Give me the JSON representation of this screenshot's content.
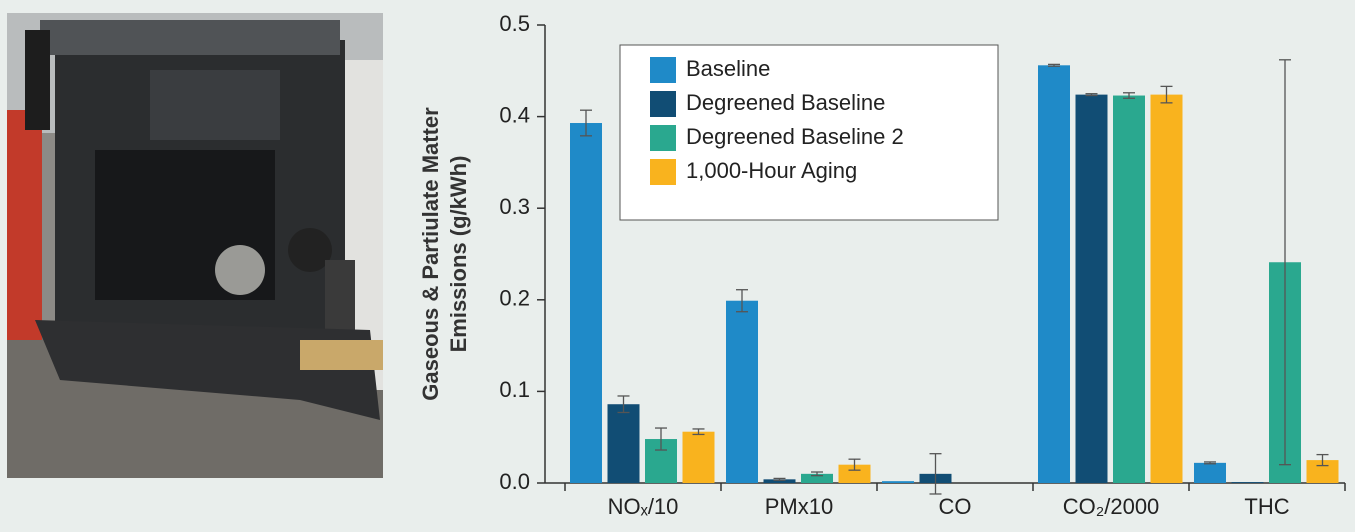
{
  "chart_data": {
    "type": "bar",
    "ylabel": [
      "Gaseous & Partiulate Matter",
      "Emissions (g/kWh)"
    ],
    "categories": [
      "NOₓ/10",
      "PMx10",
      "CO",
      "CO₂/2000",
      "THC"
    ],
    "series": [
      {
        "name": "Baseline",
        "color": "#1f8ac8",
        "values": [
          0.393,
          0.199,
          0.002,
          0.456,
          0.022
        ],
        "errors": [
          0.014,
          0.012,
          0,
          0.001,
          0.001
        ]
      },
      {
        "name": "Degreened Baseline",
        "color": "#114d74",
        "values": [
          0.086,
          0.004,
          0.01,
          0.424,
          0.001
        ],
        "errors": [
          0.009,
          0.001,
          0.022,
          0.001,
          0
        ]
      },
      {
        "name": "Degreened Baseline 2",
        "color": "#2aa88f",
        "values": [
          0.048,
          0.01,
          0,
          0.423,
          0.241
        ],
        "errors": [
          0.012,
          0.002,
          0,
          0.003,
          0.221
        ]
      },
      {
        "name": "1,000-Hour Aging",
        "color": "#f9b31e",
        "values": [
          0.056,
          0.02,
          0,
          0.424,
          0.025
        ],
        "errors": [
          0.003,
          0.006,
          0,
          0.009,
          0.006
        ]
      }
    ],
    "ylim": [
      0,
      0.5
    ],
    "yticks": [
      {
        "value": 0,
        "label": "0.0"
      },
      0.1,
      0.2,
      0.3,
      0.4,
      0.5
    ],
    "legend": "upper-left",
    "grid": false
  }
}
